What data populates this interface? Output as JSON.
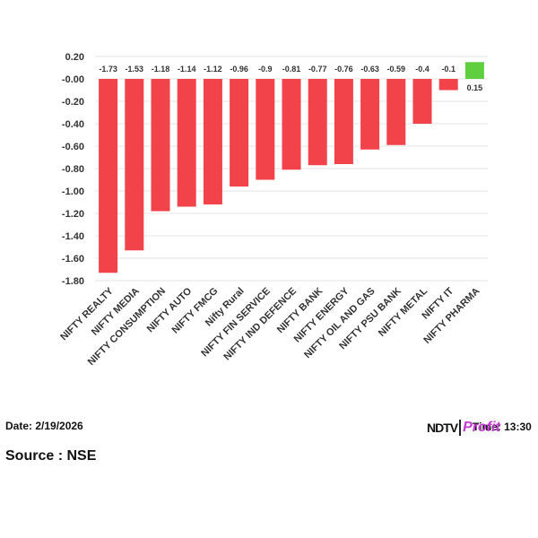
{
  "chart_data": {
    "type": "bar",
    "categories": [
      "NIFTY REALTY",
      "NIFTY MEDIA",
      "NIFTY CONSUMPTION",
      "NIFTY AUTO",
      "NIFTY FMCG",
      "Nifty Rural",
      "NIFTY FIN SERVICE",
      "NIFTY IND DEFENCE",
      "NIFTY BANK",
      "NIFTY ENERGY",
      "NIFTY OIL AND GAS",
      "NIFTY PSU BANK",
      "NIFTY METAL",
      "NIFTY IT",
      "NIFTY PHARMA"
    ],
    "values": [
      -1.73,
      -1.53,
      -1.18,
      -1.14,
      -1.12,
      -0.96,
      -0.9,
      -0.81,
      -0.77,
      -0.76,
      -0.63,
      -0.59,
      -0.4,
      -0.1,
      0.15
    ],
    "data_labels": [
      "-1.73",
      "-1.53",
      "-1.18",
      "-1.14",
      "-1.12",
      "-0.96",
      "-0.9",
      "-0.81",
      "-0.77",
      "-0.76",
      "-0.63",
      "-0.59",
      "-0.4",
      "-0.1",
      "0.15"
    ],
    "ylim": [
      -1.8,
      0.2
    ],
    "yticks": [
      0.2,
      0.0,
      -0.2,
      -0.4,
      -0.6,
      -0.8,
      -1.0,
      -1.2,
      -1.4,
      -1.6,
      -1.8
    ],
    "ytick_labels": [
      "0.20",
      "-0.00",
      "-0.20",
      "-0.40",
      "-0.60",
      "-0.80",
      "-1.00",
      "-1.20",
      "-1.40",
      "-1.60",
      "-1.80"
    ],
    "grid": true,
    "colors": {
      "negative": "#f2434b",
      "positive": "#5fcf3f",
      "grid": "#e6e6e6"
    }
  },
  "footer": {
    "date": "Date: 2/19/2026",
    "source": "Source : NSE",
    "time": "Time: 13:30",
    "logo_ndtv": "NDTV",
    "logo_profit": "Profit"
  }
}
